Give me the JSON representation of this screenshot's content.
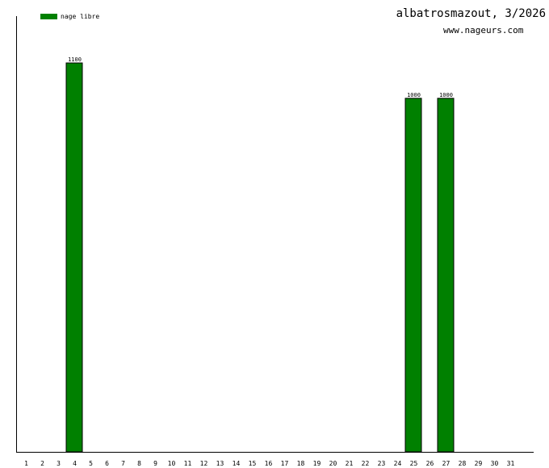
{
  "header": {
    "title": "albatrosmazout, 3/2026",
    "subtitle": "www.nageurs.com"
  },
  "colors": {
    "bar": "#008000",
    "axis": "#000000"
  },
  "chart_data": {
    "type": "bar",
    "title": "albatrosmazout, 3/2026",
    "subtitle": "www.nageurs.com",
    "categories": [
      "1",
      "2",
      "3",
      "4",
      "5",
      "6",
      "7",
      "8",
      "9",
      "10",
      "11",
      "12",
      "13",
      "14",
      "15",
      "16",
      "17",
      "18",
      "19",
      "20",
      "21",
      "22",
      "23",
      "24",
      "25",
      "26",
      "27",
      "28",
      "29",
      "30",
      "31"
    ],
    "series": [
      {
        "name": "nage libre",
        "color": "#008000",
        "values": [
          0,
          0,
          0,
          1100,
          0,
          0,
          0,
          0,
          0,
          0,
          0,
          0,
          0,
          0,
          0,
          0,
          0,
          0,
          0,
          0,
          0,
          0,
          0,
          0,
          1000,
          0,
          1000,
          0,
          0,
          0,
          0
        ]
      }
    ],
    "ylim": [
      0,
      1100
    ],
    "grid": false,
    "legend_position": "top-left",
    "xlabel": "",
    "ylabel": ""
  }
}
